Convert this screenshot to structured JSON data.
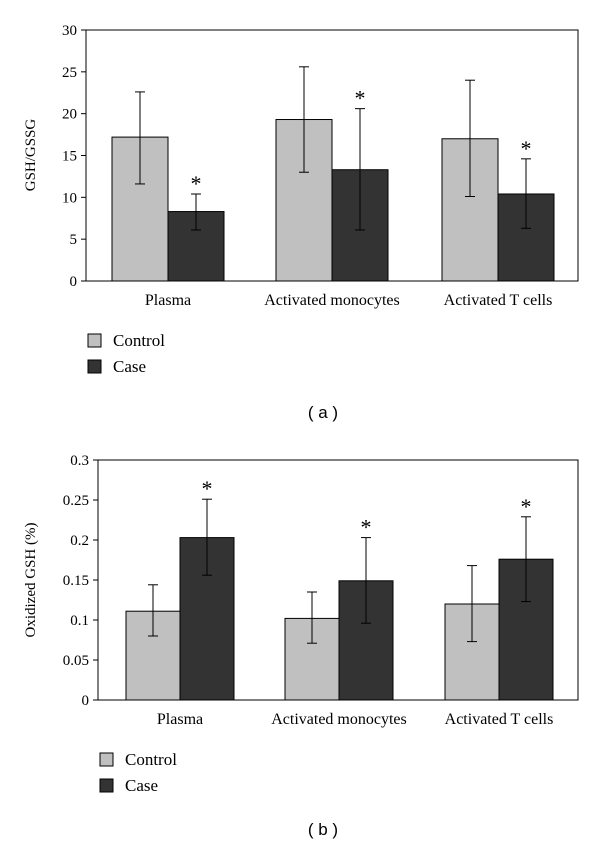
{
  "chart_data": [
    {
      "type": "bar",
      "panel_label": "( a )",
      "ylabel": "GSH/GSSG",
      "categories": [
        "Plasma",
        "Activated monocytes",
        "Activated T cells"
      ],
      "ylim": [
        0,
        30
      ],
      "yticks": [
        0,
        5,
        10,
        15,
        20,
        25,
        30
      ],
      "ytick_labels": [
        "0",
        "5",
        "10",
        "15",
        "20",
        "25",
        "30"
      ],
      "series": [
        {
          "name": "Control",
          "color": "#c0c0c0",
          "values": [
            17.2,
            19.3,
            17.0
          ],
          "err_low": [
            11.6,
            13.0,
            10.1
          ],
          "err_high": [
            22.6,
            25.6,
            24.0
          ],
          "sig": [
            "",
            "",
            ""
          ]
        },
        {
          "name": "Case",
          "color": "#333333",
          "values": [
            8.3,
            13.3,
            10.4
          ],
          "err_low": [
            6.1,
            6.1,
            6.3
          ],
          "err_high": [
            10.4,
            20.6,
            14.6
          ],
          "sig": [
            "*",
            "*",
            "*"
          ]
        }
      ],
      "legend_position": "bottom-left",
      "grid": false
    },
    {
      "type": "bar",
      "panel_label": "( b )",
      "ylabel": "Oxidized GSH (%)",
      "categories": [
        "Plasma",
        "Activated monocytes",
        "Activated T cells"
      ],
      "ylim": [
        0,
        0.3
      ],
      "yticks": [
        0,
        0.05,
        0.1,
        0.15,
        0.2,
        0.25,
        0.3
      ],
      "ytick_labels": [
        "0",
        "0.05",
        "0.1",
        "0.15",
        "0.2",
        "0.25",
        "0.3"
      ],
      "series": [
        {
          "name": "Control",
          "color": "#c0c0c0",
          "values": [
            0.111,
            0.102,
            0.12
          ],
          "err_low": [
            0.08,
            0.071,
            0.073
          ],
          "err_high": [
            0.144,
            0.135,
            0.168
          ],
          "sig": [
            "",
            "",
            ""
          ]
        },
        {
          "name": "Case",
          "color": "#333333",
          "values": [
            0.203,
            0.149,
            0.176
          ],
          "err_low": [
            0.156,
            0.096,
            0.123
          ],
          "err_high": [
            0.251,
            0.203,
            0.229
          ],
          "sig": [
            "*",
            "*",
            "*"
          ]
        }
      ],
      "legend_position": "bottom-left",
      "grid": false
    }
  ]
}
